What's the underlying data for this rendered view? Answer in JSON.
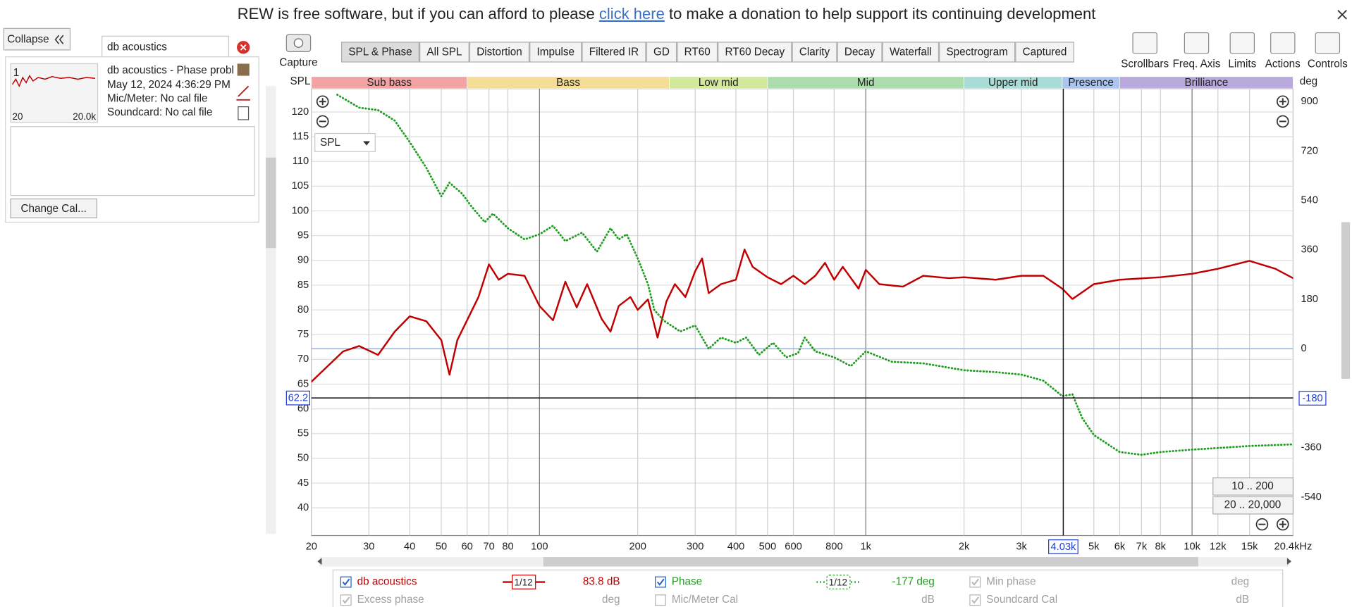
{
  "header": {
    "text_before": "REW is free software, but if you can afford to please",
    "link": "click here",
    "text_after": "to make a donation to help support its continuing development"
  },
  "sidebar": {
    "collapse": "Collapse",
    "search": "db acoustics",
    "measurement": {
      "number": "1",
      "name": "db acoustics - Phase probl",
      "date": "May 12, 2024 4:36:29 PM",
      "mic": "Mic/Meter: No cal file",
      "soundcard": "Soundcard: No cal file",
      "thumb_left": "20",
      "thumb_right": "20.0k"
    },
    "change_cal": "Change Cal..."
  },
  "toolbar": {
    "capture": "Capture",
    "tabs": [
      "SPL & Phase",
      "All SPL",
      "Distortion",
      "Impulse",
      "Filtered IR",
      "GD",
      "RT60",
      "RT60 Decay",
      "Clarity",
      "Decay",
      "Waterfall",
      "Spectrogram",
      "Captured"
    ],
    "buttons": [
      "Scrollbars",
      "Freq. Axis",
      "Limits",
      "Actions",
      "Controls"
    ]
  },
  "chart_data": {
    "type": "line",
    "x_log": true,
    "grid": true,
    "y_label": "SPL",
    "y2_label": "deg",
    "selector": "SPL",
    "y2_zero_line": true,
    "xlim": [
      20,
      20400
    ],
    "ylim": [
      34.4,
      124.7
    ],
    "y2lim": [
      -680,
      947
    ],
    "xticks": [
      20,
      30,
      40,
      50,
      60,
      70,
      80,
      100,
      200,
      300,
      400,
      500,
      600,
      800,
      {
        "value": 1000,
        "label": "1k"
      },
      {
        "value": 2000,
        "label": "2k"
      },
      {
        "value": 3000,
        "label": "3k"
      },
      {
        "value": 5000,
        "label": "5k"
      },
      {
        "value": 6000,
        "label": "6k"
      },
      {
        "value": 7000,
        "label": "7k"
      },
      {
        "value": 8000,
        "label": "8k"
      },
      {
        "value": 10000,
        "label": "10k"
      },
      {
        "value": 12000,
        "label": "12k"
      },
      {
        "value": 15000,
        "label": "15k"
      },
      {
        "value": 20400,
        "label": "20.4kHz"
      }
    ],
    "yticks": [
      40,
      45,
      50,
      55,
      60,
      65,
      70,
      75,
      80,
      85,
      90,
      95,
      100,
      105,
      110,
      115,
      120
    ],
    "y2ticks": [
      900,
      720,
      540,
      360,
      180,
      0,
      -180,
      -360,
      -540
    ],
    "bands": [
      {
        "name": "Sub bass",
        "start": 20,
        "end": 60,
        "color": "#f3a3a3"
      },
      {
        "name": "Bass",
        "start": 60,
        "end": 250,
        "color": "#f6dd95"
      },
      {
        "name": "Low mid",
        "start": 250,
        "end": 500,
        "color": "#d2e99c"
      },
      {
        "name": "Mid",
        "start": 500,
        "end": 2000,
        "color": "#abdeac"
      },
      {
        "name": "Upper mid",
        "start": 2000,
        "end": 4000,
        "color": "#a9dcd6"
      },
      {
        "name": "Presence",
        "start": 4000,
        "end": 6000,
        "color": "#abc5ee"
      },
      {
        "name": "Brilliance",
        "start": 6000,
        "end": 20400,
        "color": "#baa9dc"
      }
    ],
    "cursor": {
      "x": {
        "value": 4030,
        "label": "4.03k"
      },
      "y": 62.2,
      "y2": -180
    },
    "zoom_buttons": [
      "10 .. 200",
      "20 .. 20,000"
    ],
    "series": [
      {
        "name": "db acoustics",
        "color": "#c00000",
        "axis": "y",
        "x": [
          20,
          25,
          28,
          32,
          36,
          40,
          45,
          50,
          53,
          56,
          60,
          65,
          70,
          75,
          80,
          90,
          100,
          110,
          120,
          130,
          140,
          155,
          165,
          175,
          190,
          200,
          215,
          230,
          245,
          260,
          280,
          300,
          315,
          330,
          360,
          400,
          425,
          450,
          500,
          550,
          600,
          650,
          700,
          750,
          800,
          850,
          950,
          1000,
          1100,
          1300,
          1500,
          1800,
          2000,
          2500,
          3000,
          3500,
          4000,
          4300,
          5000,
          6000,
          8000,
          10000,
          12000,
          15000,
          18000,
          20400
        ],
        "values": [
          65.5,
          71.6,
          72.7,
          70.9,
          75.6,
          78.7,
          77.7,
          73.9,
          66.9,
          73.9,
          77.9,
          82.6,
          89.2,
          86.1,
          87.3,
          86.9,
          80.8,
          77.9,
          85.7,
          80.5,
          85.2,
          78.2,
          75.6,
          80.8,
          82.6,
          80,
          82.1,
          74.4,
          81.7,
          85.2,
          82.6,
          87.8,
          90.4,
          83.4,
          85.2,
          86.1,
          92.2,
          88.7,
          86.6,
          85.2,
          86.9,
          85.2,
          86.9,
          89.5,
          86.1,
          88.7,
          84.3,
          88.1,
          85.2,
          84.7,
          86.9,
          86.4,
          86.6,
          86.1,
          86.9,
          86.9,
          84.3,
          82.2,
          85.2,
          86.1,
          86.6,
          87.3,
          88.3,
          89.9,
          88.3,
          86.4
        ]
      },
      {
        "name": "Phase",
        "color": "#1e9e1e",
        "axis": "y2",
        "dotted": true,
        "x": [
          24,
          28,
          32,
          36,
          40,
          45,
          50,
          53,
          58,
          62,
          68,
          72,
          80,
          90,
          100,
          110,
          120,
          135,
          150,
          165,
          175,
          185,
          200,
          215,
          225,
          240,
          270,
          300,
          330,
          360,
          400,
          430,
          470,
          520,
          570,
          620,
          650,
          700,
          800,
          900,
          1000,
          1200,
          1500,
          2000,
          2500,
          3000,
          3500,
          4000,
          4300,
          4600,
          5000,
          6000,
          7000,
          8000,
          10000,
          15000,
          20400
        ],
        "values": [
          925,
          878,
          869,
          831,
          753,
          659,
          555,
          605,
          564,
          517,
          461,
          492,
          439,
          398,
          417,
          448,
          392,
          423,
          354,
          439,
          398,
          417,
          329,
          235,
          141,
          103,
          63,
          85,
          0,
          41,
          22,
          41,
          -22,
          22,
          -31,
          -16,
          41,
          -9,
          -31,
          -63,
          -9,
          -47,
          -53,
          -78,
          -85,
          -94,
          -116,
          -172,
          -166,
          -251,
          -314,
          -376,
          -386,
          -376,
          -367,
          -354,
          -348
        ]
      }
    ]
  },
  "legend_panel": {
    "spl_smoothing": "1/12",
    "spl_readout": "83.8 dB",
    "phase_smoothing": "1/12",
    "phase_readout": "-177 deg",
    "others": [
      {
        "label": "Min phase",
        "unit": "deg",
        "checked": true
      },
      {
        "label": "Excess phase",
        "unit": "deg",
        "checked": true
      },
      {
        "label": "Mic/Meter Cal",
        "unit": "dB",
        "checked": false
      },
      {
        "label": "Soundcard Cal",
        "unit": "dB",
        "checked": true
      }
    ]
  }
}
